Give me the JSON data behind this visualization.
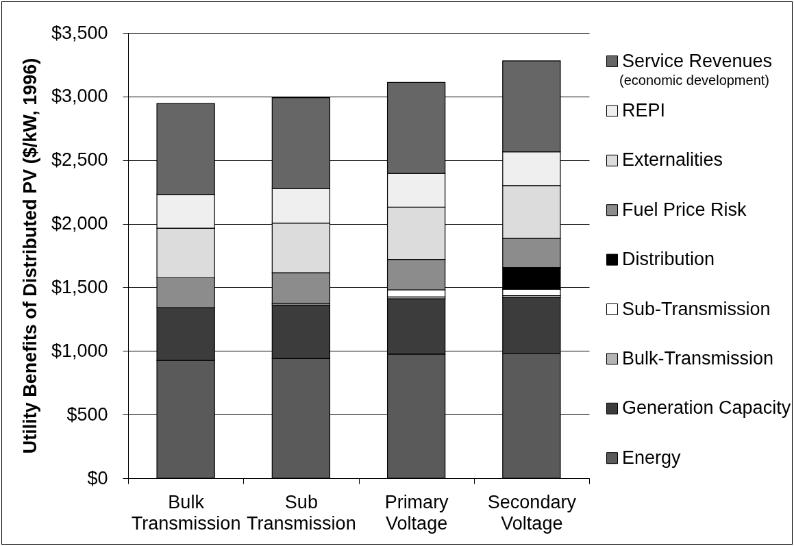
{
  "chart_data": {
    "type": "bar",
    "stacked": true,
    "ylabel": "Utility Benefits of Distributed PV ($/kW, 1996)",
    "categories": [
      "Bulk\nTransmission",
      "Sub\nTransmission",
      "Primary\nVoltage",
      "Secondary\nVoltage"
    ],
    "series": [
      {
        "name": "Energy",
        "color": "#5a5a5a",
        "values": [
          925,
          940,
          975,
          980
        ]
      },
      {
        "name": "Generation Capacity",
        "color": "#3c3c3c",
        "values": [
          415,
          420,
          435,
          440
        ]
      },
      {
        "name": "Bulk-Transmission",
        "color": "#b4b4b4",
        "values": [
          null,
          15,
          15,
          15
        ]
      },
      {
        "name": "Sub-Transmission",
        "color": "#ffffff",
        "values": [
          null,
          null,
          55,
          50
        ]
      },
      {
        "name": "Distribution",
        "color": "#000000",
        "values": [
          null,
          null,
          null,
          170
        ]
      },
      {
        "name": "Fuel Price Risk",
        "color": "#8c8c8c",
        "values": [
          235,
          240,
          240,
          230
        ]
      },
      {
        "name": "Externalities",
        "color": "#dcdcdc",
        "values": [
          390,
          390,
          410,
          415
        ]
      },
      {
        "name": "REPI",
        "color": "#efefef",
        "values": [
          265,
          270,
          265,
          265
        ]
      },
      {
        "name": "Service Revenues",
        "color": "#666666",
        "values": [
          715,
          715,
          715,
          715
        ]
      }
    ],
    "annotations": [
      "(economic development)"
    ],
    "ylim": [
      0,
      3500
    ],
    "yticks": [
      {
        "value": 0,
        "label": "$0"
      },
      {
        "value": 500,
        "label": "$500"
      },
      {
        "value": 1000,
        "label": "$1,000"
      },
      {
        "value": 1500,
        "label": "$1,500"
      },
      {
        "value": 2000,
        "label": "$2,000"
      },
      {
        "value": 2500,
        "label": "$2,500"
      },
      {
        "value": 3000,
        "label": "$3,000"
      },
      {
        "value": 3500,
        "label": "$3,500"
      }
    ],
    "grid": "y",
    "legend": "right"
  }
}
